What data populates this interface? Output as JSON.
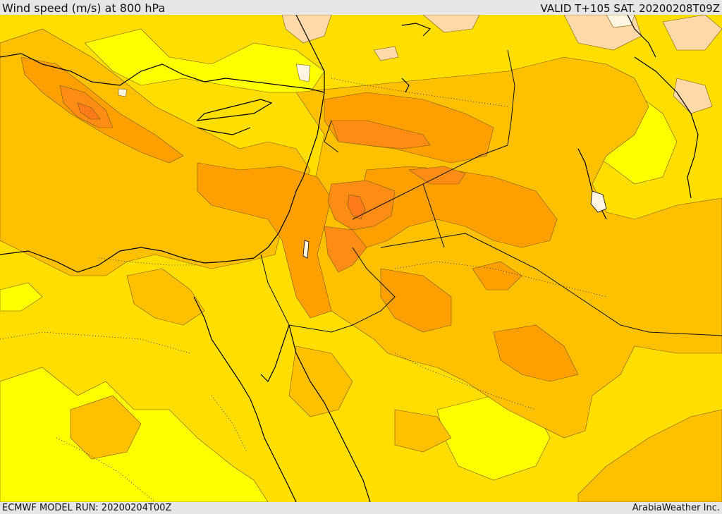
{
  "header": {
    "title": "Wind speed (m/s) at 800 hPa",
    "valid": "VALID T+105 SAT. 20200208T09Z"
  },
  "footer": {
    "model_run": "ECMWF MODEL RUN: 20200204T00Z",
    "credit": "ArabiaWeather Inc."
  },
  "map": {
    "field": "wind speed",
    "level": "800 hPa",
    "colors": {
      "lightest": "#fff5e0",
      "light": "#ffd9a8",
      "yellow": "#ffff00",
      "gold": "#ffde00",
      "amber": "#ffc000",
      "orange": "#ffa000",
      "dark_orange": "#ff8c14",
      "deep_orange": "#ff7a1a",
      "contour": "#7a5a00",
      "coast": "#000000"
    }
  }
}
